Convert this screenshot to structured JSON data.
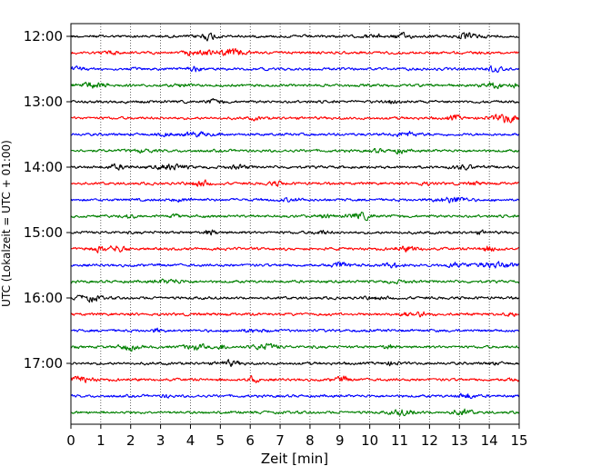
{
  "chart_data": {
    "type": "line",
    "title": "",
    "xlabel": "Zeit  [min]",
    "ylabel": "UTC (Lokalzeit = UTC + 01:00)",
    "xlim": [
      0,
      15
    ],
    "x_ticks": [
      "0",
      "1",
      "2",
      "3",
      "4",
      "5",
      "6",
      "7",
      "8",
      "9",
      "10",
      "11",
      "12",
      "13",
      "14",
      "15"
    ],
    "y_tick_labels": [
      "12:00",
      "13:00",
      "14:00",
      "15:00",
      "16:00",
      "17:00"
    ],
    "grid": "vertical dotted lines at each minute",
    "legend": "none",
    "trace_start_times": [
      "12:00",
      "12:15",
      "12:30",
      "12:45",
      "13:00",
      "13:15",
      "13:30",
      "13:45",
      "14:00",
      "14:15",
      "14:30",
      "14:45",
      "15:00",
      "15:15",
      "15:30",
      "15:45",
      "16:00",
      "16:15",
      "16:30",
      "16:45",
      "17:00",
      "17:15",
      "17:30",
      "17:45"
    ],
    "trace_colors": [
      "#000000",
      "#ff0000",
      "#0000ff",
      "#008000"
    ],
    "series_note": "24 seismogram-style traces, one per 15-minute interval, each spanning 0-15 min"
  }
}
